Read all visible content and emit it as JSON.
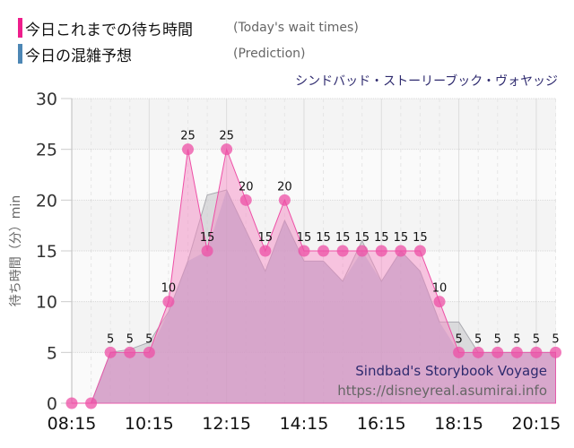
{
  "legend": [
    {
      "label_jp": "今日これまでの待ち時間",
      "label_en": "(Today's wait times)",
      "color": "#ee1e8c"
    },
    {
      "label_jp": "今日の混雑予想",
      "label_en": "(Prediction)",
      "color": "#4d87b5"
    }
  ],
  "attraction_title_jp": "シンドバッド・ストーリーブック・ヴォヤッジ",
  "watermark": {
    "name": "Sindbad's Storybook Voyage",
    "url": "https://disneyreal.asumirai.info"
  },
  "chart_data": {
    "type": "area",
    "title": "シンドバッド・ストーリーブック・ヴォヤッジ",
    "xlabel": "",
    "ylabel": "待ち時間（分）min",
    "ylim": [
      0,
      30
    ],
    "yticks": [
      0,
      5,
      10,
      15,
      20,
      25,
      30
    ],
    "xtick_labels": [
      "08:15",
      "10:15",
      "12:15",
      "14:15",
      "16:15",
      "18:15",
      "20:15"
    ],
    "grid": true,
    "legend_position": "top-left",
    "x": [
      "08:15",
      "08:45",
      "09:15",
      "09:45",
      "10:15",
      "10:45",
      "11:15",
      "11:45",
      "12:15",
      "12:45",
      "13:15",
      "13:45",
      "14:15",
      "14:45",
      "15:15",
      "15:45",
      "16:15",
      "16:45",
      "17:15",
      "17:45",
      "18:15",
      "18:45",
      "19:15",
      "19:45",
      "20:15",
      "20:45"
    ],
    "series": [
      {
        "name": "今日これまでの待ち時間 (Today's wait times)",
        "color": "#ee1e8c",
        "values": [
          0,
          0,
          5,
          5,
          5,
          10,
          25,
          15,
          25,
          20,
          15,
          20,
          15,
          15,
          15,
          15,
          15,
          15,
          15,
          10,
          5,
          5,
          5,
          5,
          5,
          5
        ]
      },
      {
        "name": "今日の混雑予想 (Prediction)",
        "color": "#4d87b5",
        "values": [
          0,
          0,
          5,
          5.3,
          6,
          9,
          14,
          20.5,
          21,
          17,
          13,
          18,
          14,
          14,
          12,
          16,
          12,
          15,
          13,
          8,
          8,
          5,
          5,
          5,
          5,
          5
        ]
      }
    ]
  }
}
